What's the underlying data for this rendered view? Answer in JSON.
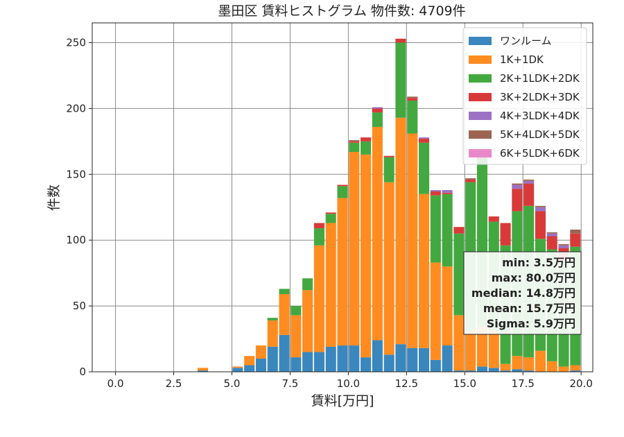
{
  "chart_data": {
    "type": "bar",
    "stacked": true,
    "title": "墨田区 賃料ヒストグラム  物件数: 4709件",
    "xlabel": "賃料[万円]",
    "ylabel": "件数",
    "xlim": [
      -1.0,
      20.5
    ],
    "ylim": [
      0,
      265
    ],
    "xticks": [
      0.0,
      2.5,
      5.0,
      7.5,
      10.0,
      12.5,
      15.0,
      17.5,
      20.0
    ],
    "xtick_labels": [
      "0.0",
      "2.5",
      "5.0",
      "7.5",
      "10.0",
      "12.5",
      "15.0",
      "17.5",
      "20.0"
    ],
    "yticks": [
      0,
      50,
      100,
      150,
      200,
      250
    ],
    "ytick_labels": [
      "0",
      "50",
      "100",
      "150",
      "200",
      "250"
    ],
    "grid": true,
    "legend_position": "top-right",
    "bin_width": 0.5,
    "bin_starts": [
      3.5,
      4.0,
      4.5,
      5.0,
      5.5,
      6.0,
      6.5,
      7.0,
      7.5,
      8.0,
      8.5,
      9.0,
      9.5,
      10.0,
      10.5,
      11.0,
      11.5,
      12.0,
      12.5,
      13.0,
      13.5,
      14.0,
      14.5,
      15.0,
      15.5,
      16.0,
      16.5,
      17.0,
      17.5,
      18.0,
      18.5,
      19.0,
      19.5
    ],
    "series": [
      {
        "name": "ワンルーム",
        "color": "#3a87bd",
        "values": [
          1,
          0,
          0,
          3,
          5,
          10,
          19,
          28,
          11,
          15,
          15,
          19,
          20,
          20,
          11,
          24,
          13,
          21,
          18,
          18,
          9,
          20,
          1,
          1,
          4,
          3,
          1,
          2,
          1,
          0,
          0,
          0,
          1
        ]
      },
      {
        "name": "1K+1DK",
        "color": "#ff8c21",
        "values": [
          2,
          0,
          0,
          1,
          7,
          10,
          20,
          31,
          32,
          47,
          81,
          94,
          112,
          147,
          154,
          162,
          131,
          172,
          163,
          117,
          74,
          60,
          42,
          30,
          30,
          28,
          5,
          10,
          10,
          16,
          8,
          4,
          4
        ]
      },
      {
        "name": "2K+1LDK+2DK",
        "color": "#44a840",
        "values": [
          0,
          0,
          0,
          0,
          0,
          0,
          2,
          4,
          7,
          9,
          13,
          7,
          9,
          7,
          10,
          11,
          19,
          57,
          25,
          39,
          51,
          55,
          62,
          113,
          128,
          83,
          90,
          110,
          115,
          85,
          85,
          80,
          90
        ]
      },
      {
        "name": "3K+2LDK+3DK",
        "color": "#d83a3a",
        "values": [
          0,
          0,
          0,
          0,
          0,
          0,
          0,
          0,
          0,
          0,
          4,
          1,
          1,
          1,
          3,
          3,
          1,
          3,
          2,
          3,
          3,
          1,
          5,
          2,
          2,
          4,
          17,
          17,
          17,
          21,
          10,
          10,
          10
        ]
      },
      {
        "name": "4K+3LDK+4DK",
        "color": "#9b72c4",
        "values": [
          0,
          0,
          0,
          0,
          0,
          0,
          0,
          0,
          0,
          0,
          0,
          0,
          0,
          0,
          0,
          1,
          0,
          0,
          0,
          1,
          1,
          2,
          0,
          0,
          1,
          0,
          0,
          3,
          2,
          3,
          2,
          2,
          0
        ]
      },
      {
        "name": "5K+4LDK+5DK",
        "color": "#9c6552",
        "values": [
          0,
          0,
          0,
          0,
          0,
          0,
          0,
          0,
          0,
          0,
          0,
          0,
          0,
          1,
          0,
          0,
          0,
          0,
          1,
          0,
          0,
          0,
          0,
          1,
          0,
          0,
          0,
          1,
          1,
          1,
          1,
          1,
          3
        ]
      },
      {
        "name": "6K+5LDK+6DK",
        "color": "#e888c8",
        "values": [
          0,
          0,
          0,
          0,
          0,
          0,
          0,
          0,
          0,
          0,
          0,
          0,
          0,
          0,
          0,
          0,
          0,
          0,
          0,
          0,
          0,
          0,
          0,
          0,
          0,
          0,
          0,
          0,
          0,
          0,
          0,
          0,
          0
        ]
      }
    ],
    "stats": {
      "min": "min: 3.5万円",
      "max": "max: 80.0万円",
      "median": "median: 14.8万円",
      "mean": "mean: 15.7万円",
      "sigma": "Sigma: 5.9万円"
    }
  }
}
